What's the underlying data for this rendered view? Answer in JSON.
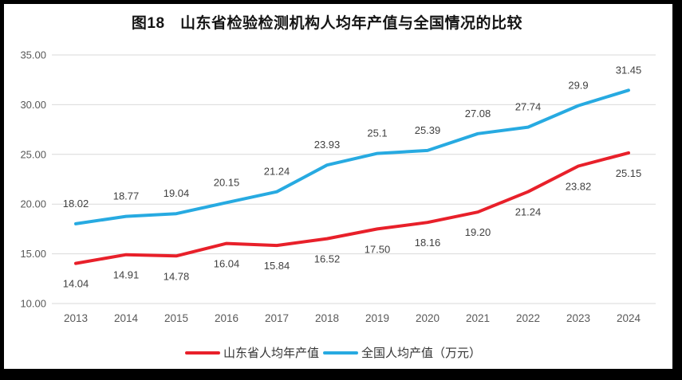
{
  "title": "图18　山东省检验检测机构人均年产值与全国情况的比较",
  "chart_data": {
    "type": "line",
    "title": "图18　山东省检验检测机构人均年产值与全国情况的比较",
    "categories": [
      "2013",
      "2014",
      "2015",
      "2016",
      "2017",
      "2018",
      "2019",
      "2020",
      "2021",
      "2022",
      "2023",
      "2024"
    ],
    "series": [
      {
        "name": "山东省人均年产值",
        "color": "#e8202a",
        "values": [
          14.04,
          14.91,
          14.78,
          16.04,
          15.84,
          16.52,
          17.5,
          18.16,
          19.2,
          21.24,
          23.82,
          25.15
        ],
        "labels": [
          "14.04",
          "14.91",
          "14.78",
          "16.04",
          "15.84",
          "16.52",
          "17.50",
          "18.16",
          "19.20",
          "21.24",
          "23.82",
          "25.15"
        ],
        "label_position": "below"
      },
      {
        "name": "全国人均产值（万元）",
        "color": "#27aae1",
        "values": [
          18.02,
          18.77,
          19.04,
          20.15,
          21.24,
          23.93,
          25.1,
          25.39,
          27.08,
          27.74,
          29.9,
          31.45
        ],
        "labels": [
          "18.02",
          "18.77",
          "19.04",
          "20.15",
          "21.24",
          "23.93",
          "25.1",
          "25.39",
          "27.08",
          "27.74",
          "29.9",
          "31.45"
        ],
        "label_position": "above"
      }
    ],
    "ylim": [
      10,
      35
    ],
    "ytick_step": 5,
    "ytick_labels": [
      "10.00",
      "15.00",
      "20.00",
      "25.00",
      "30.00",
      "35.00"
    ],
    "xlabel": "",
    "ylabel": "",
    "grid": true,
    "legend_position": "bottom"
  },
  "style": {
    "grid_color": "#d9d9d9",
    "axis_text_color": "#595959",
    "data_label_color": "#404040",
    "line_width": 4
  }
}
